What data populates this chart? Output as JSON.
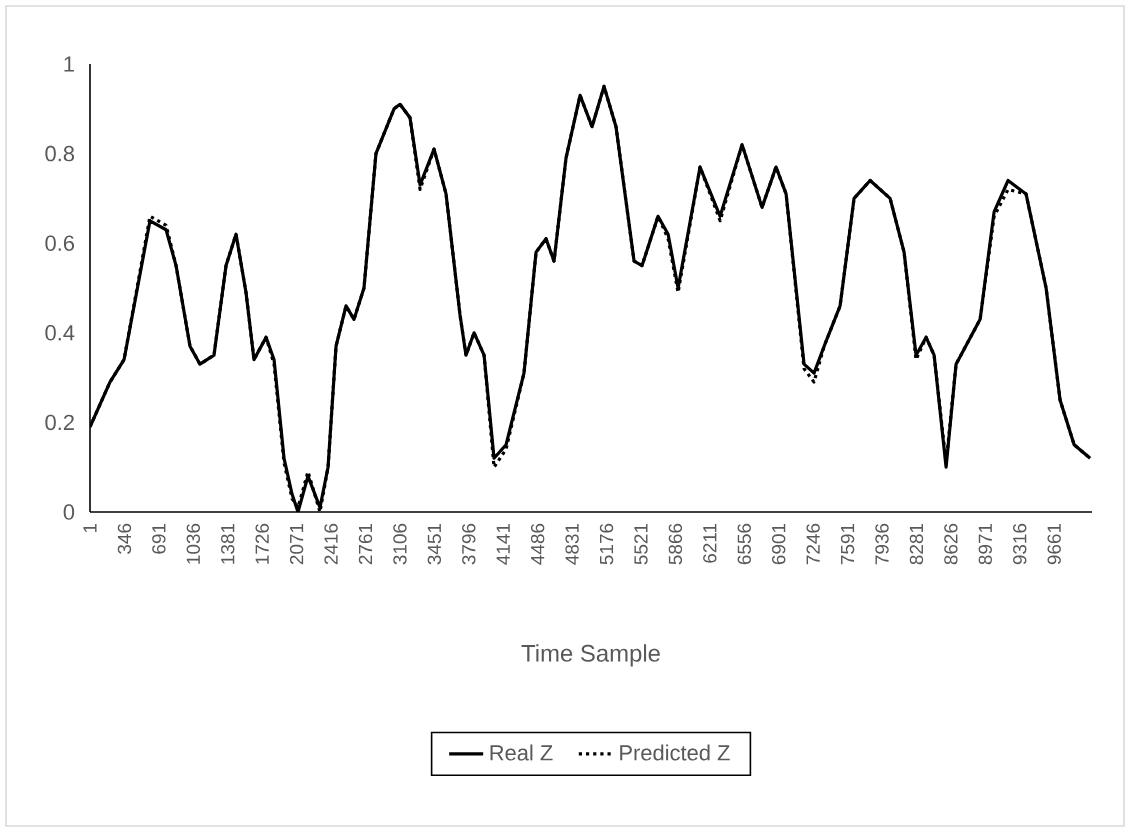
{
  "chart_data": {
    "type": "line",
    "xlabel": "Time Sample",
    "legend": "bottom",
    "grid": false,
    "marker": "none",
    "xlim": [
      1,
      10040
    ],
    "ylim": [
      0,
      1
    ],
    "xticks": [
      1,
      346,
      691,
      1036,
      1381,
      1726,
      2071,
      2416,
      2761,
      3106,
      3451,
      3796,
      4141,
      4486,
      4831,
      5176,
      5521,
      5866,
      6211,
      6556,
      6901,
      7246,
      7591,
      7936,
      8281,
      8626,
      8971,
      9316,
      9661
    ],
    "yticks": [
      0,
      0.2,
      0.4,
      0.6,
      0.8,
      1
    ],
    "x": [
      1,
      201,
      342,
      602,
      763,
      863,
      1003,
      1103,
      1243,
      1364,
      1464,
      1564,
      1644,
      1765,
      1845,
      1945,
      2025,
      2085,
      2185,
      2305,
      2386,
      2466,
      2566,
      2646,
      2746,
      2866,
      3047,
      3107,
      3207,
      3308,
      3448,
      3568,
      3708,
      3768,
      3849,
      3949,
      4049,
      4169,
      4349,
      4470,
      4570,
      4650,
      4770,
      4911,
      5031,
      5151,
      5271,
      5452,
      5532,
      5692,
      5793,
      5893,
      6113,
      6314,
      6534,
      6734,
      6874,
      6975,
      7155,
      7255,
      7356,
      7516,
      7656,
      7817,
      8017,
      8157,
      8277,
      8378,
      8458,
      8578,
      8678,
      8919,
      9059,
      9199,
      9379,
      9580,
      9720,
      9861,
      10021
    ],
    "series": [
      {
        "name": "Real Z",
        "color": "#000000",
        "line_style": "solid",
        "values": [
          0.19,
          0.29,
          0.34,
          0.65,
          0.63,
          0.55,
          0.37,
          0.33,
          0.35,
          0.55,
          0.62,
          0.49,
          0.34,
          0.39,
          0.34,
          0.12,
          0.04,
          0.0,
          0.08,
          0.01,
          0.1,
          0.37,
          0.46,
          0.43,
          0.5,
          0.8,
          0.9,
          0.91,
          0.88,
          0.73,
          0.81,
          0.71,
          0.44,
          0.35,
          0.4,
          0.35,
          0.12,
          0.15,
          0.31,
          0.58,
          0.61,
          0.56,
          0.79,
          0.93,
          0.86,
          0.95,
          0.86,
          0.56,
          0.55,
          0.66,
          0.62,
          0.5,
          0.77,
          0.66,
          0.82,
          0.68,
          0.77,
          0.71,
          0.33,
          0.31,
          0.37,
          0.46,
          0.7,
          0.74,
          0.7,
          0.58,
          0.35,
          0.39,
          0.35,
          0.1,
          0.33,
          0.43,
          0.67,
          0.74,
          0.71,
          0.5,
          0.25,
          0.15,
          0.12
        ]
      },
      {
        "name": "Predicted Z",
        "color": "#000000",
        "line_style": "dotted",
        "values": [
          0.19,
          0.29,
          0.34,
          0.66,
          0.64,
          0.55,
          0.37,
          0.33,
          0.35,
          0.55,
          0.62,
          0.49,
          0.34,
          0.39,
          0.33,
          0.11,
          0.03,
          0.01,
          0.09,
          0.0,
          0.1,
          0.37,
          0.46,
          0.43,
          0.5,
          0.8,
          0.9,
          0.91,
          0.88,
          0.72,
          0.81,
          0.71,
          0.44,
          0.35,
          0.4,
          0.35,
          0.1,
          0.14,
          0.31,
          0.58,
          0.61,
          0.56,
          0.79,
          0.93,
          0.86,
          0.95,
          0.86,
          0.56,
          0.55,
          0.66,
          0.61,
          0.49,
          0.77,
          0.65,
          0.82,
          0.68,
          0.77,
          0.71,
          0.32,
          0.29,
          0.37,
          0.46,
          0.7,
          0.74,
          0.7,
          0.58,
          0.34,
          0.39,
          0.35,
          0.11,
          0.33,
          0.43,
          0.66,
          0.72,
          0.71,
          0.5,
          0.25,
          0.15,
          0.12
        ]
      }
    ]
  }
}
